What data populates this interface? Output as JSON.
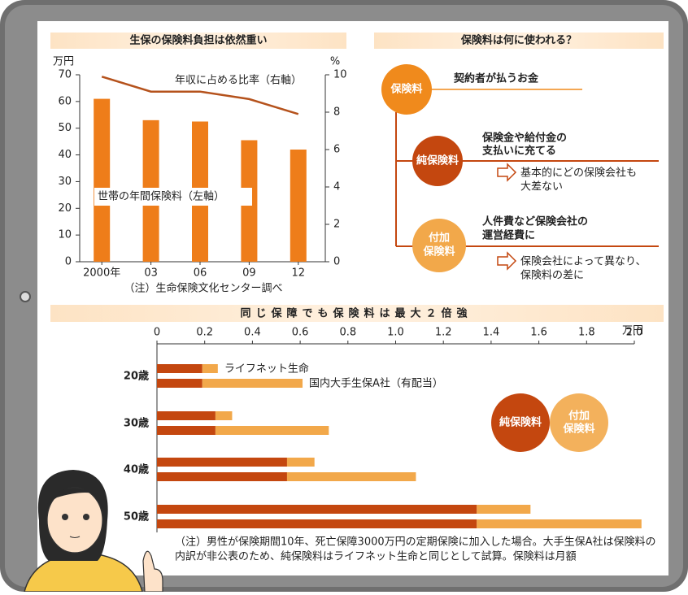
{
  "chart_data": [
    {
      "type": "bar-line",
      "title": "生保の保険料負担は依然重い",
      "categories": [
        "2000年",
        "03",
        "06",
        "09",
        "12"
      ],
      "series": [
        {
          "name": "世帯の年間保険料（左軸）",
          "type": "bar",
          "color": "#ee7d1a",
          "values": [
            61,
            53,
            52.5,
            45.5,
            42
          ]
        },
        {
          "name": "年収に占める比率（右軸）",
          "type": "line",
          "axis": "y2",
          "color": "#b5521c",
          "values": [
            9.9,
            9.1,
            9.1,
            8.7,
            7.9
          ]
        }
      ],
      "y_unit": "万円",
      "y2_unit": "%",
      "ylim": [
        0,
        70
      ],
      "yticks": [
        0,
        10,
        20,
        30,
        40,
        50,
        60,
        70
      ],
      "y2lim": [
        0,
        10
      ],
      "y2ticks": [
        0,
        2,
        4,
        6,
        8,
        10
      ],
      "note": "（注）生命保険文化センター調べ"
    },
    {
      "type": "stacked-hbar",
      "title": "同じ保障でも保険料は最大２倍強",
      "categories": [
        "20歳",
        "30歳",
        "40歳",
        "50歳"
      ],
      "legend": [
        {
          "name": [
            "純保険料"
          ],
          "color": "#c4470f"
        },
        {
          "name": [
            "付加",
            "保険料"
          ],
          "color": "#f2a84a"
        }
      ],
      "series": [
        {
          "name": "ライフネット生命",
          "net": [
            0.19,
            0.245,
            0.545,
            1.34
          ],
          "loading": [
            0.065,
            0.07,
            0.115,
            0.225
          ]
        },
        {
          "name": "国内大手生保A社（有配当）",
          "net": [
            0.19,
            0.245,
            0.545,
            1.34
          ],
          "loading": [
            0.42,
            0.475,
            0.54,
            0.69
          ]
        }
      ],
      "x_unit": "万円",
      "xlim": [
        0,
        2.0
      ],
      "xticks": [
        0,
        0.2,
        0.4,
        0.6,
        0.8,
        {
          "value": 1.0,
          "label": "1.0"
        },
        1.2,
        1.4,
        1.6,
        1.8,
        {
          "value": 2.0,
          "label": "2.0"
        }
      ],
      "note": [
        "（注）男性が保険期間10年、死亡保障3000万円の定期保険に加入した場合。大手生保A社は保険料の",
        "内訳が非公表のため、純保険料はライフネット生命と同じとして試算。保険料は月額"
      ]
    }
  ],
  "diagram": {
    "title": "保険料は何に使われる？",
    "nodes": [
      {
        "label": [
          "保険料"
        ],
        "text": [
          "契約者が払うお金"
        ]
      },
      {
        "label": [
          "純保険料"
        ],
        "text": [
          "保険金や給付金の",
          "支払いに充てる"
        ],
        "result": [
          "基本的にどの保険会社も",
          "大差ない"
        ]
      },
      {
        "label": [
          "付加",
          "保険料"
        ],
        "text": [
          "人件費など保険会社の",
          "運営経費に"
        ],
        "result": [
          "保険会社によって異なり、",
          "保険料の差に"
        ]
      }
    ]
  }
}
